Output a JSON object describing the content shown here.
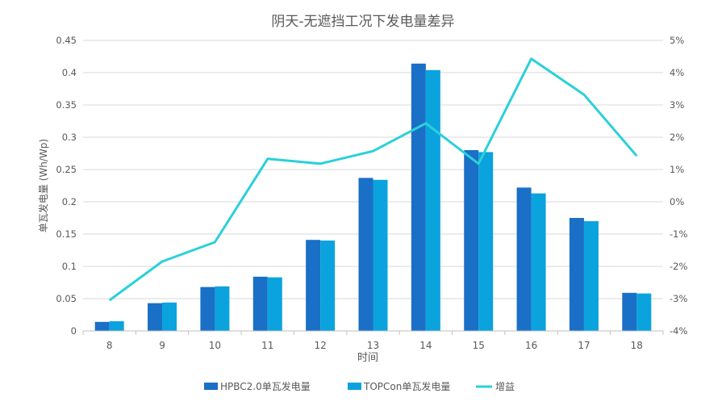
{
  "chart_data": {
    "type": "bar",
    "title": "阴天-无遮挡工况下发电量差异",
    "xlabel": "时间",
    "ylabel": "单瓦发电量 (Wh/Wp)",
    "categories": [
      "8",
      "9",
      "10",
      "11",
      "12",
      "13",
      "14",
      "15",
      "16",
      "17",
      "18"
    ],
    "ylim": [
      0,
      0.45
    ],
    "yticks": [
      0,
      0.05,
      0.1,
      0.15,
      0.2,
      0.25,
      0.3,
      0.35,
      0.4,
      0.45
    ],
    "ytick_labels": [
      "0",
      "0.05",
      "0.1",
      "0.15",
      "0.2",
      "0.25",
      "0.3",
      "0.35",
      "0.4",
      "0.45"
    ],
    "y2lim": [
      -4,
      5
    ],
    "y2ticks": [
      -4,
      -3,
      -2,
      -1,
      0,
      1,
      2,
      3,
      4,
      5
    ],
    "y2tick_labels": [
      "-4%",
      "-3%",
      "-2%",
      "-1%",
      "0%",
      "1%",
      "2%",
      "3%",
      "4%",
      "5%"
    ],
    "series": [
      {
        "name": "HPBC2.0单瓦发电量",
        "type": "bar",
        "axis": "left",
        "color": "#1a6fc6",
        "values": [
          0.014,
          0.043,
          0.068,
          0.084,
          0.141,
          0.237,
          0.414,
          0.28,
          0.222,
          0.175,
          0.059
        ]
      },
      {
        "name": "TOPCon单瓦发电量",
        "type": "bar",
        "axis": "left",
        "color": "#0aa3de",
        "values": [
          0.015,
          0.044,
          0.069,
          0.083,
          0.14,
          0.234,
          0.404,
          0.277,
          0.213,
          0.17,
          0.058
        ]
      },
      {
        "name": "增益",
        "type": "line",
        "axis": "right",
        "color": "#2bd0d9",
        "values": [
          -3.05,
          -1.85,
          -1.25,
          1.33,
          1.18,
          1.57,
          2.43,
          1.18,
          4.43,
          3.32,
          1.42
        ]
      }
    ],
    "legend_position": "bottom-center"
  }
}
